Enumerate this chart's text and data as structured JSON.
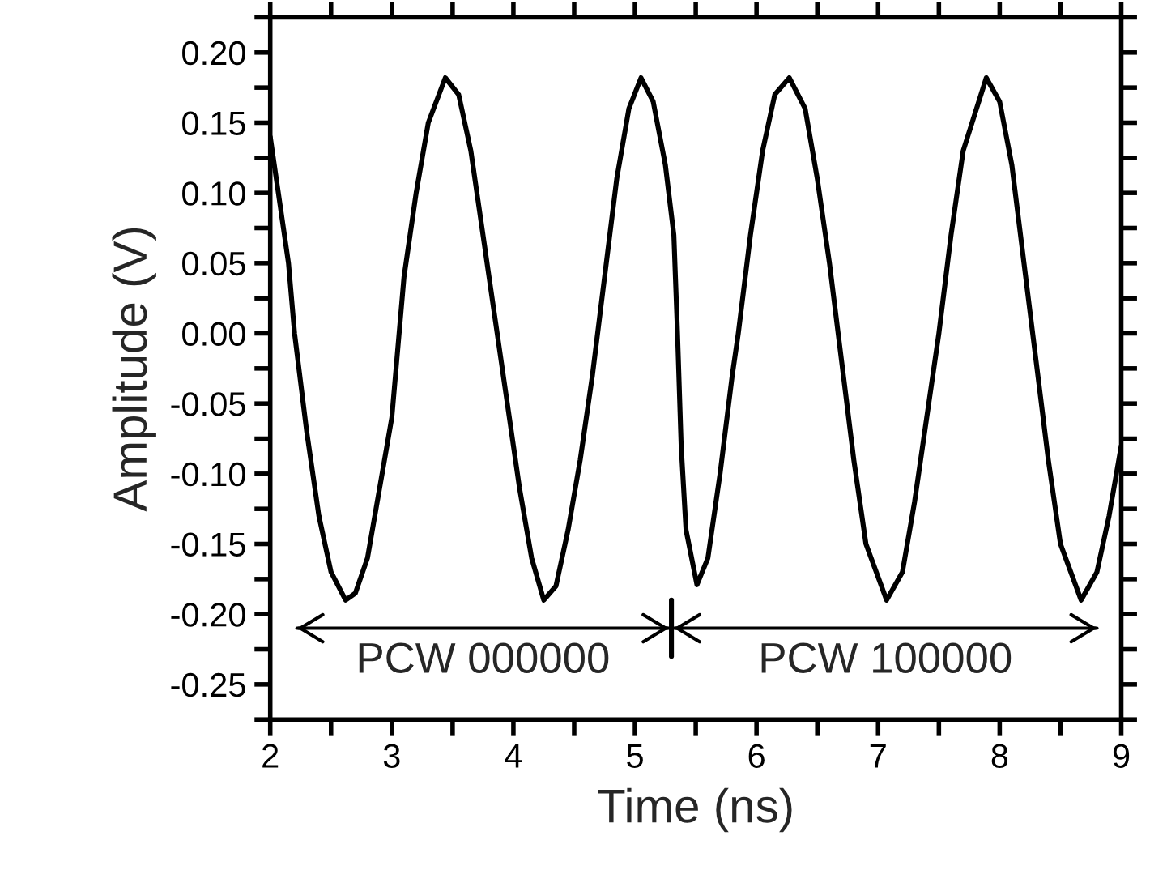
{
  "chart_data": {
    "type": "line",
    "xlabel": "Time (ns)",
    "ylabel": "Amplitude (V)",
    "xlim": [
      2,
      9
    ],
    "ylim": [
      -0.275,
      0.225
    ],
    "xticks": [
      2,
      {
        "value": 2.5,
        "label": null
      },
      3,
      {
        "value": 3.5,
        "label": null
      },
      4,
      {
        "value": 4.5,
        "label": null
      },
      5,
      {
        "value": 5.5,
        "label": null
      },
      6,
      {
        "value": 6.5,
        "label": null
      },
      7,
      {
        "value": 7.5,
        "label": null
      },
      8,
      {
        "value": 8.5,
        "label": null
      },
      9
    ],
    "yticks": [
      {
        "value": -0.275,
        "label": null
      },
      {
        "value": -0.25,
        "label": "-0.25"
      },
      {
        "value": -0.225,
        "label": null
      },
      {
        "value": -0.2,
        "label": "-0.20"
      },
      {
        "value": -0.175,
        "label": null
      },
      {
        "value": -0.15,
        "label": "-0.15"
      },
      {
        "value": -0.125,
        "label": null
      },
      {
        "value": -0.1,
        "label": "-0.10"
      },
      {
        "value": -0.075,
        "label": null
      },
      {
        "value": -0.05,
        "label": "-0.05"
      },
      {
        "value": -0.025,
        "label": null
      },
      {
        "value": 0,
        "label": "0.00"
      },
      {
        "value": 0.025,
        "label": null
      },
      {
        "value": 0.05,
        "label": "0.05"
      },
      {
        "value": 0.075,
        "label": null
      },
      {
        "value": 0.1,
        "label": "0.10"
      },
      {
        "value": 0.125,
        "label": null
      },
      {
        "value": 0.15,
        "label": "0.15"
      },
      {
        "value": 0.175,
        "label": null
      },
      {
        "value": 0.2,
        "label": "0.20"
      },
      {
        "value": 0.225,
        "label": null
      }
    ],
    "grid": false,
    "legend": false,
    "marker": "none",
    "line_style": "solid",
    "series": [
      {
        "color": "#000000",
        "x": [
          2.0,
          2.05,
          2.15,
          2.2,
          2.3,
          2.4,
          2.5,
          2.62,
          2.7,
          2.8,
          2.9,
          3.0,
          3.1,
          3.2,
          3.3,
          3.44,
          3.55,
          3.65,
          3.75,
          3.85,
          3.95,
          4.05,
          4.15,
          4.25,
          4.35,
          4.45,
          4.55,
          4.65,
          4.75,
          4.85,
          4.95,
          5.05,
          5.15,
          5.25,
          5.32,
          5.35,
          5.38,
          5.42,
          5.51,
          5.6,
          5.7,
          5.8,
          5.85,
          5.95,
          6.05,
          6.15,
          6.27,
          6.4,
          6.5,
          6.6,
          6.7,
          6.8,
          6.9,
          7.07,
          7.2,
          7.3,
          7.4,
          7.5,
          7.6,
          7.7,
          7.89,
          8.0,
          8.1,
          8.2,
          8.3,
          8.4,
          8.5,
          8.67,
          8.8,
          8.9,
          9.0
        ],
        "values": [
          0.14,
          0.11,
          0.05,
          0.0,
          -0.07,
          -0.13,
          -0.17,
          -0.19,
          -0.185,
          -0.16,
          -0.11,
          -0.06,
          0.04,
          0.1,
          0.15,
          0.182,
          0.17,
          0.13,
          0.07,
          0.01,
          -0.05,
          -0.11,
          -0.16,
          -0.19,
          -0.18,
          -0.14,
          -0.09,
          -0.03,
          0.04,
          0.11,
          0.16,
          0.182,
          0.165,
          0.12,
          0.07,
          0.0,
          -0.08,
          -0.14,
          -0.179,
          -0.16,
          -0.1,
          -0.03,
          0.0,
          0.07,
          0.13,
          0.17,
          0.182,
          0.16,
          0.11,
          0.05,
          -0.02,
          -0.09,
          -0.15,
          -0.19,
          -0.17,
          -0.12,
          -0.06,
          0.0,
          0.07,
          0.13,
          0.182,
          0.165,
          0.12,
          0.05,
          -0.02,
          -0.09,
          -0.15,
          -0.19,
          -0.17,
          -0.13,
          -0.08
        ]
      },
      {
        "color": "#000000",
        "type": "line",
        "x": [
          2.22,
          5.28
        ],
        "values": [
          -0.21,
          -0.21
        ]
      },
      {
        "color": "#000000",
        "type": "line",
        "x": [
          5.3,
          5.3
        ],
        "values": [
          -0.19,
          -0.23
        ]
      },
      {
        "color": "#000000",
        "type": "line",
        "x": [
          5.32,
          8.8
        ],
        "values": [
          -0.21,
          -0.21
        ]
      }
    ],
    "annotations": [
      "PCW 000000",
      "PCW 100000"
    ]
  }
}
